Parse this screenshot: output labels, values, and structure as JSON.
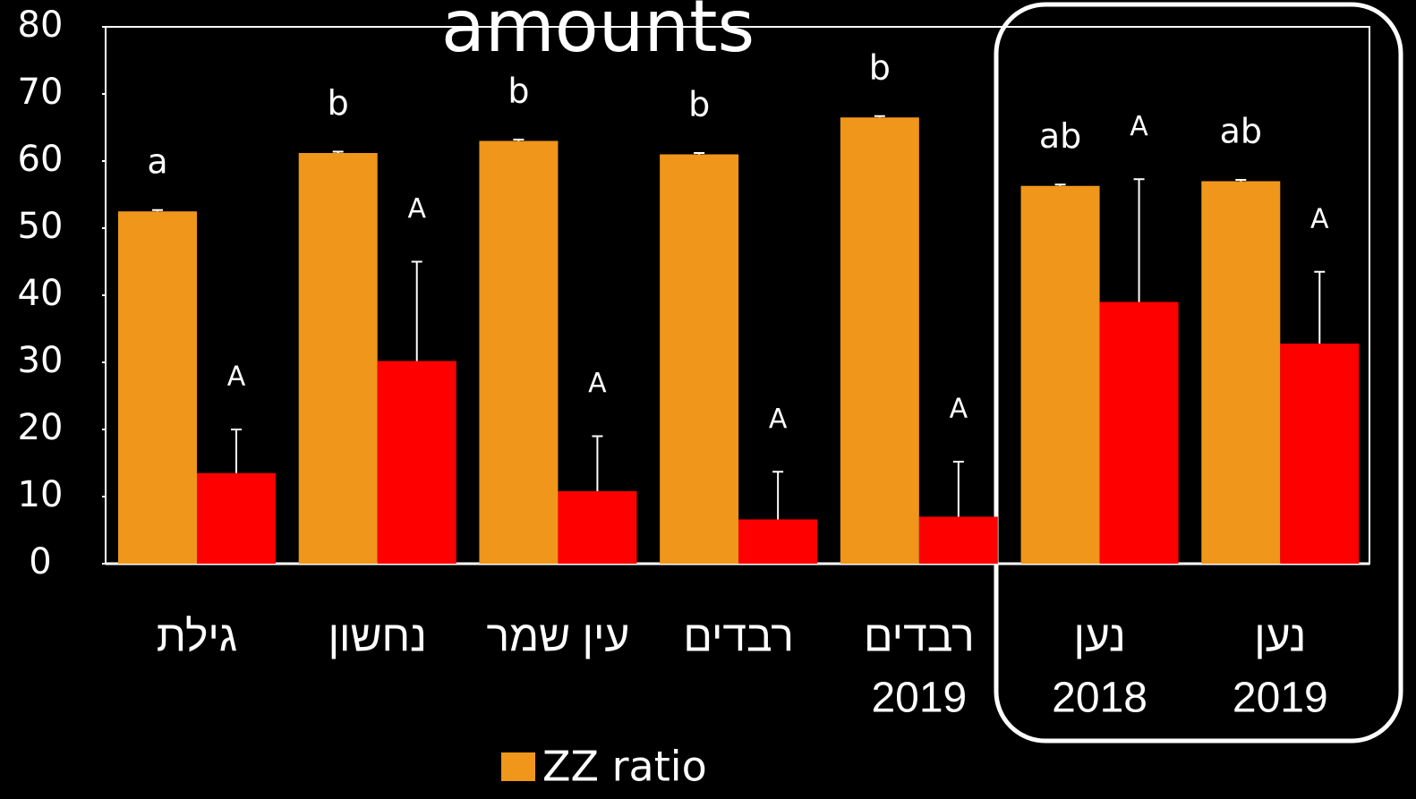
{
  "chart_data": {
    "type": "bar",
    "title": "amounts",
    "categories": [
      [
        "גילת"
      ],
      [
        "נחשון"
      ],
      [
        "עין שמר"
      ],
      [
        "רבדים"
      ],
      [
        "רבדים",
        "2019"
      ],
      [
        "נען",
        "2018"
      ],
      [
        "נען",
        "2019"
      ]
    ],
    "series": [
      {
        "name": "ZZ ratio",
        "color": "#f0961a",
        "values": [
          52.5,
          61.2,
          63,
          61,
          66.5,
          56.3,
          57
        ],
        "errors": [
          0.2,
          0.2,
          0.2,
          0.2,
          0.2,
          0.2,
          0.2
        ],
        "letters": [
          "a",
          "b",
          "b",
          "b",
          "b",
          "ab",
          "ab"
        ]
      },
      {
        "color": "#ff0000",
        "values": [
          13.5,
          30.2,
          10.8,
          6.6,
          7,
          39,
          32.8
        ],
        "errors": [
          6.5,
          14.8,
          8.2,
          7.1,
          8.2,
          18.3,
          10.7
        ],
        "letters": [
          "A",
          "A",
          "A",
          "A",
          "A",
          "A",
          "A"
        ]
      }
    ],
    "ylim": [
      0,
      80
    ],
    "yticks": [
      0,
      10,
      20,
      30,
      40,
      50,
      60,
      70,
      80
    ],
    "legend": "bottom"
  }
}
